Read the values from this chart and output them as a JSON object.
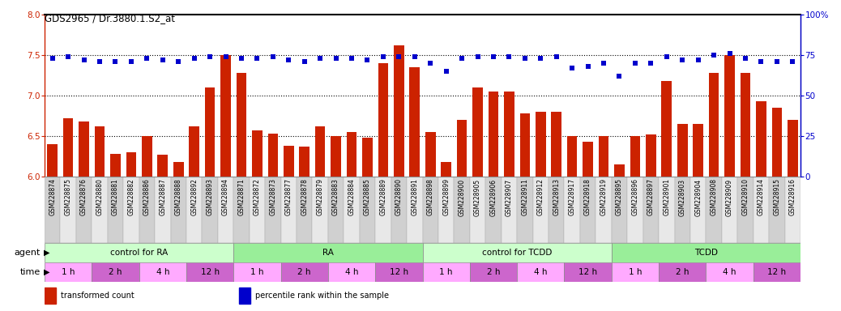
{
  "title": "GDS2965 / Dr.3880.1.S2_at",
  "sample_ids": [
    "GSM228874",
    "GSM228875",
    "GSM228876",
    "GSM228880",
    "GSM228881",
    "GSM228882",
    "GSM228886",
    "GSM228887",
    "GSM228888",
    "GSM228892",
    "GSM228893",
    "GSM228894",
    "GSM228871",
    "GSM228872",
    "GSM228873",
    "GSM228877",
    "GSM228878",
    "GSM228879",
    "GSM228883",
    "GSM228884",
    "GSM228885",
    "GSM228889",
    "GSM228890",
    "GSM228891",
    "GSM228898",
    "GSM228899",
    "GSM228900",
    "GSM228905",
    "GSM228906",
    "GSM228907",
    "GSM228911",
    "GSM228912",
    "GSM228913",
    "GSM228917",
    "GSM228918",
    "GSM228919",
    "GSM228895",
    "GSM228896",
    "GSM228897",
    "GSM228901",
    "GSM228903",
    "GSM228904",
    "GSM228908",
    "GSM228909",
    "GSM228910",
    "GSM228914",
    "GSM228915",
    "GSM228916"
  ],
  "bar_values": [
    6.4,
    6.72,
    6.68,
    6.62,
    6.28,
    6.3,
    6.5,
    6.27,
    6.18,
    6.62,
    7.1,
    7.5,
    7.28,
    6.57,
    6.53,
    6.38,
    6.37,
    6.62,
    6.5,
    6.55,
    6.48,
    7.4,
    7.62,
    7.35,
    6.55,
    6.18,
    6.7,
    7.1,
    7.05,
    7.05,
    6.78,
    6.8,
    6.8,
    6.5,
    6.43,
    6.5,
    6.15,
    6.5,
    6.52,
    7.18,
    6.65,
    6.65,
    7.28,
    7.5,
    7.28,
    6.93,
    6.85,
    6.7
  ],
  "percentile_values": [
    73,
    74,
    72,
    71,
    71,
    71,
    73,
    72,
    71,
    73,
    74,
    74,
    73,
    73,
    74,
    72,
    71,
    73,
    73,
    73,
    72,
    74,
    74,
    74,
    70,
    65,
    73,
    74,
    74,
    74,
    73,
    73,
    74,
    67,
    68,
    70,
    62,
    70,
    70,
    74,
    72,
    72,
    75,
    76,
    73,
    71,
    71,
    71
  ],
  "agent_groups": [
    {
      "label": "control for RA",
      "start": 0,
      "end": 12,
      "color": "#ccffcc"
    },
    {
      "label": "RA",
      "start": 12,
      "end": 24,
      "color": "#99ee99"
    },
    {
      "label": "control for TCDD",
      "start": 24,
      "end": 36,
      "color": "#ccffcc"
    },
    {
      "label": "TCDD",
      "start": 36,
      "end": 48,
      "color": "#99ee99"
    }
  ],
  "time_groups": [
    {
      "label": "1 h",
      "start": 0,
      "end": 3,
      "color": "#ffaaff"
    },
    {
      "label": "2 h",
      "start": 3,
      "end": 6,
      "color": "#cc66cc"
    },
    {
      "label": "4 h",
      "start": 6,
      "end": 9,
      "color": "#ffaaff"
    },
    {
      "label": "12 h",
      "start": 9,
      "end": 12,
      "color": "#cc66cc"
    },
    {
      "label": "1 h",
      "start": 12,
      "end": 15,
      "color": "#ffaaff"
    },
    {
      "label": "2 h",
      "start": 15,
      "end": 18,
      "color": "#cc66cc"
    },
    {
      "label": "4 h",
      "start": 18,
      "end": 21,
      "color": "#ffaaff"
    },
    {
      "label": "12 h",
      "start": 21,
      "end": 24,
      "color": "#cc66cc"
    },
    {
      "label": "1 h",
      "start": 24,
      "end": 27,
      "color": "#ffaaff"
    },
    {
      "label": "2 h",
      "start": 27,
      "end": 30,
      "color": "#cc66cc"
    },
    {
      "label": "4 h",
      "start": 30,
      "end": 33,
      "color": "#ffaaff"
    },
    {
      "label": "12 h",
      "start": 33,
      "end": 36,
      "color": "#cc66cc"
    },
    {
      "label": "1 h",
      "start": 36,
      "end": 39,
      "color": "#ffaaff"
    },
    {
      "label": "2 h",
      "start": 39,
      "end": 42,
      "color": "#cc66cc"
    },
    {
      "label": "4 h",
      "start": 42,
      "end": 45,
      "color": "#ffaaff"
    },
    {
      "label": "12 h",
      "start": 45,
      "end": 48,
      "color": "#cc66cc"
    }
  ],
  "bar_color": "#cc2200",
  "percentile_color": "#0000cc",
  "ylim_left": [
    6.0,
    8.0
  ],
  "ylim_right": [
    0,
    100
  ],
  "yticks_left": [
    6.0,
    6.5,
    7.0,
    7.5,
    8.0
  ],
  "yticks_right": [
    0,
    25,
    50,
    75,
    100
  ],
  "ylabel_right_labels": [
    "0",
    "25",
    "50",
    "75",
    "100%"
  ],
  "hlines": [
    6.5,
    7.0,
    7.5
  ],
  "background_color": "#ffffff",
  "label_bg_even": "#d0d0d0",
  "label_bg_odd": "#e8e8e8",
  "legend_items": [
    {
      "label": "transformed count",
      "color": "#cc2200"
    },
    {
      "label": "percentile rank within the sample",
      "color": "#0000cc"
    }
  ]
}
